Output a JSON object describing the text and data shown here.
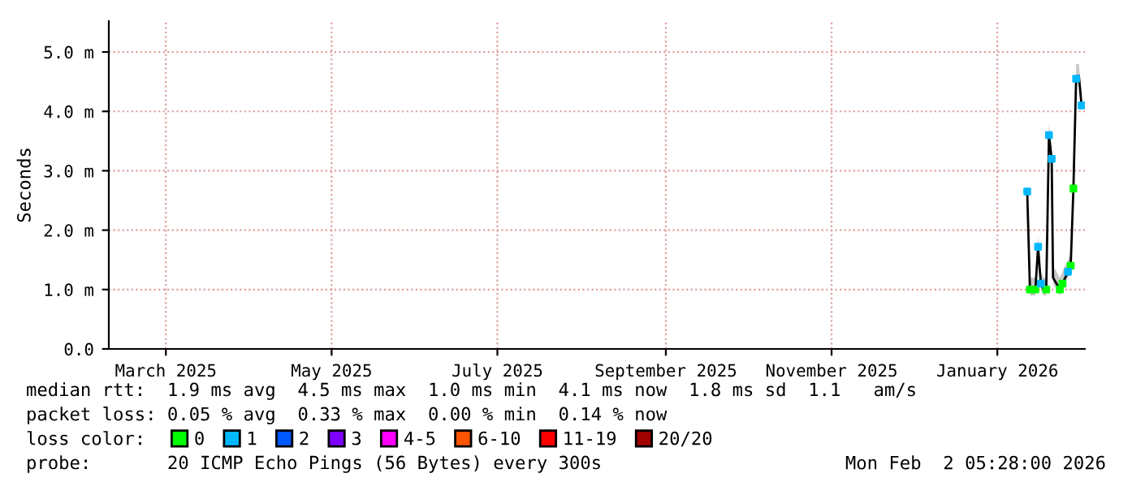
{
  "chart_data": {
    "type": "line",
    "ylabel": "Seconds",
    "xlim": [
      "2025-02-08",
      "2026-02-02T05:28"
    ],
    "ylim": [
      0,
      5.52
    ],
    "xticks": [
      {
        "value": "2025-03-01",
        "label": "March 2025"
      },
      {
        "value": "2025-05-01",
        "label": "May 2025"
      },
      {
        "value": "2025-07-01",
        "label": "July 2025"
      },
      {
        "value": "2025-09-01",
        "label": "September 2025"
      },
      {
        "value": "2025-11-01",
        "label": "November 2025"
      },
      {
        "value": "2026-01-01",
        "label": "January 2026"
      }
    ],
    "yticks": [
      {
        "value": 0,
        "label": "0.0"
      },
      {
        "value": 1,
        "label": "1.0 m"
      },
      {
        "value": 2,
        "label": "2.0 m"
      },
      {
        "value": 3,
        "label": "3.0 m"
      },
      {
        "value": 4,
        "label": "4.0 m"
      },
      {
        "value": 5,
        "label": "5.0 m"
      }
    ],
    "grid": true,
    "legend": "bottom",
    "legend_title": "loss color:",
    "marker": "none",
    "line_style": "solid",
    "series": [
      {
        "color": "#000000",
        "x": [
          "2026-01-12",
          "2026-01-13",
          "2026-01-15",
          "2026-01-16",
          "2026-01-17",
          "2026-01-18",
          "2026-01-19",
          "2026-01-20",
          "2026-01-21",
          "2026-01-21T12:00",
          "2026-01-24",
          "2026-01-25",
          "2026-01-27",
          "2026-01-28",
          "2026-01-29",
          "2026-01-30",
          "2026-01-31",
          "2026-02-01"
        ],
        "values": [
          2.65,
          1.0,
          1.0,
          1.72,
          1.1,
          1.0,
          1.0,
          3.6,
          3.2,
          1.2,
          1.0,
          1.1,
          1.3,
          1.4,
          2.7,
          4.55,
          4.6,
          4.1
        ],
        "lower": [
          2.5,
          0.9,
          0.9,
          1.6,
          1.0,
          0.9,
          0.9,
          3.4,
          3.0,
          1.1,
          0.9,
          1.0,
          1.2,
          1.3,
          2.6,
          4.4,
          4.5,
          4.0
        ],
        "upper": [
          2.8,
          1.2,
          1.2,
          1.9,
          1.3,
          1.2,
          1.2,
          3.8,
          3.4,
          1.4,
          1.2,
          1.3,
          1.5,
          1.6,
          2.9,
          4.8,
          4.8,
          4.3
        ]
      },
      {
        "type": "scatter",
        "marker": "square",
        "name": "0",
        "color": "#00ff00",
        "x": [
          "2026-01-13",
          "2026-01-15",
          "2026-01-19",
          "2026-01-24",
          "2026-01-25",
          "2026-01-28",
          "2026-01-29"
        ],
        "values": [
          1.0,
          1.0,
          1.0,
          1.0,
          1.1,
          1.4,
          2.7
        ]
      },
      {
        "type": "scatter",
        "marker": "square",
        "name": "1",
        "color": "#00b8ff",
        "x": [
          "2026-01-12",
          "2026-01-16",
          "2026-01-17",
          "2026-01-20",
          "2026-01-21",
          "2026-01-27",
          "2026-01-30",
          "2026-02-01"
        ],
        "values": [
          2.65,
          1.72,
          1.1,
          3.6,
          3.2,
          1.3,
          4.55,
          4.1
        ]
      },
      {
        "type": "scatter",
        "name": "2",
        "color": "#0059ff"
      },
      {
        "type": "scatter",
        "name": "3",
        "color": "#7e00ff"
      },
      {
        "type": "scatter",
        "name": "4-5",
        "color": "#ff00ff"
      },
      {
        "type": "scatter",
        "name": "6-10",
        "color": "#ff5500"
      },
      {
        "type": "scatter",
        "name": "11-19",
        "color": "#ff0000"
      },
      {
        "type": "scatter",
        "name": "20/20",
        "color": "#a10000"
      }
    ],
    "annotations": [
      "median rtt:  1.9 ms avg  4.5 ms max  1.0 ms min  4.1 ms now  1.8 ms sd  1.1   am/s",
      "packet loss: 0.05 % avg  0.33 % max  0.00 % min  0.14 % now",
      "probe:       20 ICMP Echo Pings (56 Bytes) every 300s",
      "Mon Feb  2 05:28:00 2026"
    ]
  }
}
